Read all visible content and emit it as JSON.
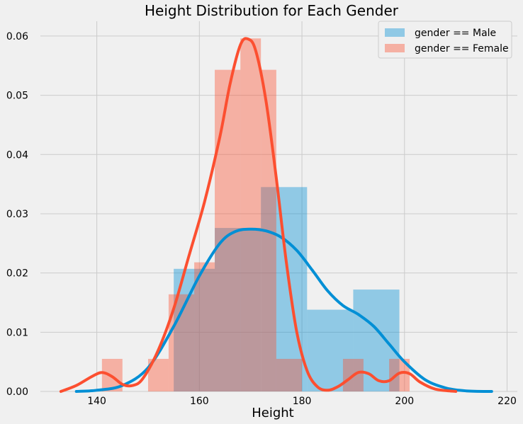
{
  "chart_data": {
    "type": "histogram+kde",
    "title": "Height Distribution for Each Gender",
    "xlabel": "Height",
    "ylabel": "",
    "xlim": [
      129,
      222
    ],
    "ylim": [
      0,
      0.0625
    ],
    "xticks": [
      140,
      160,
      180,
      200,
      220
    ],
    "yticks": [
      0.0,
      0.01,
      0.02,
      0.03,
      0.04,
      0.05,
      0.06
    ],
    "yticks_labels": [
      "0.00",
      "0.01",
      "0.02",
      "0.03",
      "0.04",
      "0.05",
      "0.06"
    ],
    "grid": true,
    "legend_placement": "top-right",
    "series": [
      {
        "name": "gender == Male",
        "color": "#008fd5",
        "bar_opacity": 0.4,
        "hist": [
          {
            "x0": 155,
            "x1": 163,
            "density": 0.0207
          },
          {
            "x0": 163,
            "x1": 172,
            "density": 0.0276
          },
          {
            "x0": 172,
            "x1": 181,
            "density": 0.0345
          },
          {
            "x0": 181,
            "x1": 190,
            "density": 0.0138
          },
          {
            "x0": 190,
            "x1": 199,
            "density": 0.0172
          }
        ],
        "kde": [
          [
            136,
            0.0
          ],
          [
            140,
            0.0002
          ],
          [
            145,
            0.001
          ],
          [
            150,
            0.004
          ],
          [
            155,
            0.011
          ],
          [
            160,
            0.0195
          ],
          [
            164,
            0.025
          ],
          [
            167,
            0.027
          ],
          [
            170,
            0.0274
          ],
          [
            173,
            0.0271
          ],
          [
            176,
            0.026
          ],
          [
            179,
            0.0238
          ],
          [
            182,
            0.0205
          ],
          [
            185,
            0.017
          ],
          [
            188,
            0.0145
          ],
          [
            191,
            0.013
          ],
          [
            194,
            0.011
          ],
          [
            197,
            0.008
          ],
          [
            200,
            0.005
          ],
          [
            204,
            0.002
          ],
          [
            208,
            0.0006
          ],
          [
            212,
            0.0001
          ],
          [
            217,
            0.0
          ]
        ]
      },
      {
        "name": "gender == Female",
        "color": "#fc4f30",
        "bar_opacity": 0.4,
        "hist": [
          {
            "x0": 141,
            "x1": 145,
            "density": 0.0055
          },
          {
            "x0": 150,
            "x1": 154,
            "density": 0.0055
          },
          {
            "x0": 154,
            "x1": 159,
            "density": 0.0164
          },
          {
            "x0": 159,
            "x1": 163,
            "density": 0.0218
          },
          {
            "x0": 163,
            "x1": 168,
            "density": 0.0543
          },
          {
            "x0": 168,
            "x1": 172,
            "density": 0.0596
          },
          {
            "x0": 172,
            "x1": 175,
            "density": 0.0543
          },
          {
            "x0": 175,
            "x1": 180,
            "density": 0.0055
          },
          {
            "x0": 188,
            "x1": 192,
            "density": 0.0055
          },
          {
            "x0": 197,
            "x1": 201,
            "density": 0.0055
          }
        ],
        "kde": [
          [
            133,
            0.0
          ],
          [
            136,
            0.001
          ],
          [
            139,
            0.0025
          ],
          [
            141,
            0.0032
          ],
          [
            143,
            0.0025
          ],
          [
            145,
            0.0012
          ],
          [
            147,
            0.001
          ],
          [
            149,
            0.0022
          ],
          [
            152,
            0.007
          ],
          [
            155,
            0.014
          ],
          [
            158,
            0.023
          ],
          [
            161,
            0.032
          ],
          [
            164,
            0.043
          ],
          [
            166,
            0.052
          ],
          [
            168,
            0.0585
          ],
          [
            169.5,
            0.0595
          ],
          [
            171,
            0.0575
          ],
          [
            173,
            0.049
          ],
          [
            175,
            0.036
          ],
          [
            177,
            0.0215
          ],
          [
            179,
            0.01
          ],
          [
            181,
            0.0035
          ],
          [
            183,
            0.0008
          ],
          [
            185,
            0.0002
          ],
          [
            187,
            0.0008
          ],
          [
            189,
            0.002
          ],
          [
            191,
            0.0032
          ],
          [
            193,
            0.003
          ],
          [
            195,
            0.0018
          ],
          [
            197,
            0.0018
          ],
          [
            199,
            0.0031
          ],
          [
            201,
            0.003
          ],
          [
            203,
            0.0016
          ],
          [
            206,
            0.0004
          ],
          [
            210,
            0.0
          ]
        ]
      }
    ]
  }
}
